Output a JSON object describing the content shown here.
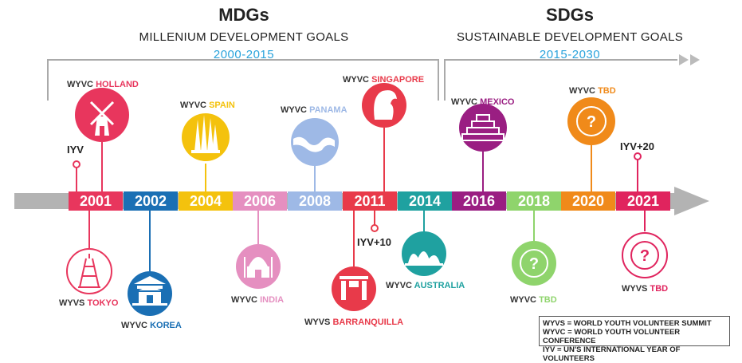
{
  "mdgs": {
    "title": "MDGs",
    "subtitle": "MILLENIUM DEVELOPMENT GOALS",
    "years": "2000-2015"
  },
  "sdgs": {
    "title": "SDGs",
    "subtitle": "SUSTAINABLE DEVELOPMENT GOALS",
    "years": "2015-2030"
  },
  "timeline": [
    {
      "year": "2001",
      "color": "#e8365d"
    },
    {
      "year": "2002",
      "color": "#1a6fb4"
    },
    {
      "year": "2004",
      "color": "#f4c20d"
    },
    {
      "year": "2006",
      "color": "#e58fc0"
    },
    {
      "year": "2008",
      "color": "#9eb9e6"
    },
    {
      "year": "2011",
      "color": "#e83a4a"
    },
    {
      "year": "2014",
      "color": "#1fa1a0"
    },
    {
      "year": "2016",
      "color": "#9a1e82"
    },
    {
      "year": "2018",
      "color": "#8fd46c"
    },
    {
      "year": "2020",
      "color": "#f08a1a"
    },
    {
      "year": "2021",
      "color": "#e0245e"
    }
  ],
  "events": {
    "holland": {
      "prefix": "WYVC",
      "place": "HOLLAND",
      "color": "#e8365d"
    },
    "tokyo": {
      "prefix": "WYVS",
      "place": "TOKYO",
      "color": "#e8365d"
    },
    "korea": {
      "prefix": "WYVC",
      "place": "KOREA",
      "color": "#1a6fb4"
    },
    "spain": {
      "prefix": "WYVC",
      "place": "SPAIN",
      "color": "#f4c20d"
    },
    "india": {
      "prefix": "WYVC",
      "place": "INDIA",
      "color": "#e58fc0"
    },
    "panama": {
      "prefix": "WYVC",
      "place": "PANAMA",
      "color": "#9eb9e6"
    },
    "singapore": {
      "prefix": "WYVC",
      "place": "SINGAPORE",
      "color": "#e83a4a"
    },
    "barranquilla": {
      "prefix": "WYVS",
      "place": "BARRANQUILLA",
      "color": "#e83a4a"
    },
    "australia": {
      "prefix": "WYVC",
      "place": "AUSTRALIA",
      "color": "#1fa1a0"
    },
    "mexico": {
      "prefix": "WYVC",
      "place": "MEXICO",
      "color": "#9a1e82"
    },
    "wyvc2018": {
      "prefix": "WYVC",
      "place": "TBD",
      "color": "#8fd46c"
    },
    "wyvc2020": {
      "prefix": "WYVC",
      "place": "TBD",
      "color": "#f08a1a"
    },
    "wyvs2021": {
      "prefix": "WYVS",
      "place": "TBD",
      "color": "#e0245e"
    }
  },
  "markers": {
    "iyv": "IYV",
    "iyv10": "IYV+10",
    "iyv20": "IYV+20"
  },
  "legend": [
    "WYVS = WORLD YOUTH VOLUNTEER SUMMIT",
    "WYVC = WORLD YOUTH VOLUNTEER CONFERENCE",
    "IYV = UN'S INTERNATIONAL YEAR OF VOLUNTEERS"
  ],
  "icons": {
    "tbd_symbol": "?"
  }
}
